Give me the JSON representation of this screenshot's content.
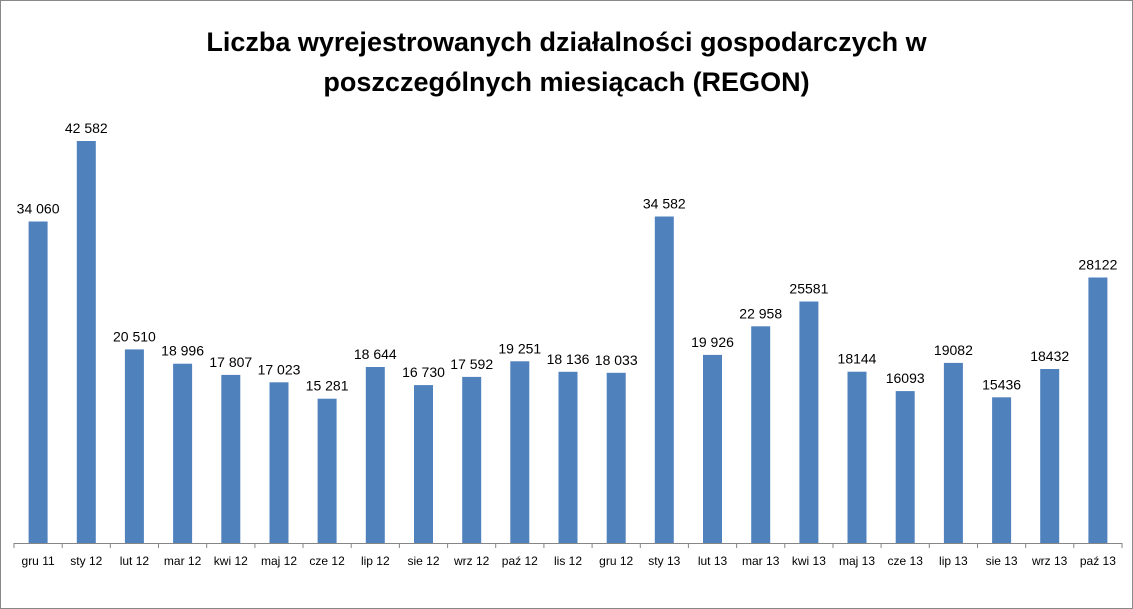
{
  "chart_data": {
    "type": "bar",
    "title_line1": "Liczba wyrejestrowanych działalności gospodarczych w",
    "title_line2": "poszczególnych miesiącach (REGON)",
    "categories": [
      "gru 11",
      "sty 12",
      "lut 12",
      "mar 12",
      "kwi 12",
      "maj 12",
      "cze 12",
      "lip 12",
      "sie 12",
      "wrz 12",
      "paź 12",
      "lis 12",
      "gru 12",
      "sty 13",
      "lut 13",
      "mar 13",
      "kwi 13",
      "maj 13",
      "cze 13",
      "lip 13",
      "sie 13",
      "wrz 13",
      "paź 13"
    ],
    "values": [
      34060,
      42582,
      20510,
      18996,
      17807,
      17023,
      15281,
      18644,
      16730,
      17592,
      19251,
      18136,
      18033,
      34582,
      19926,
      22958,
      25581,
      18144,
      16093,
      19082,
      15436,
      18432,
      28122
    ],
    "data_labels": [
      "34 060",
      "42 582",
      "20 510",
      "18 996",
      "17 807",
      "17 023",
      "15 281",
      "18 644",
      "16 730",
      "17 592",
      "19 251",
      "18 136",
      "18 033",
      "34 582",
      "19 926",
      "22 958",
      "25581",
      "18144",
      "16093",
      "19082",
      "15436",
      "18432",
      "28122"
    ],
    "ylim": [
      0,
      45000
    ],
    "grid": false,
    "legend": "none",
    "bar_color": "#4f81bd"
  }
}
